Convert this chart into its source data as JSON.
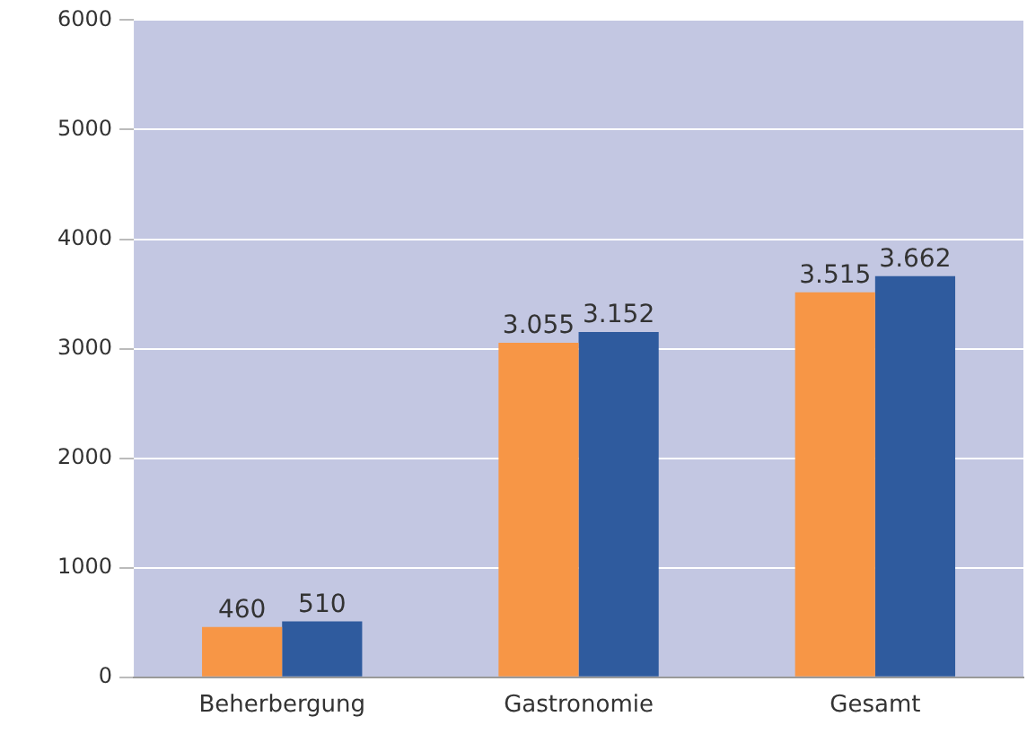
{
  "chart_data": {
    "type": "bar",
    "categories": [
      "Beherbergung",
      "Gastronomie",
      "Gesamt"
    ],
    "series": [
      {
        "color": "#f79646",
        "values": [
          460,
          3055,
          3515
        ],
        "value_labels": [
          "460",
          "3.055",
          "3.515"
        ]
      },
      {
        "color": "#2f5b9e",
        "values": [
          510,
          3152,
          3662
        ],
        "value_labels": [
          "510",
          "3.152",
          "3.662"
        ]
      }
    ],
    "ylim": [
      0,
      6000
    ],
    "yticks": [
      0,
      1000,
      2000,
      3000,
      4000,
      5000,
      6000
    ],
    "grid": "y",
    "legend": false
  }
}
